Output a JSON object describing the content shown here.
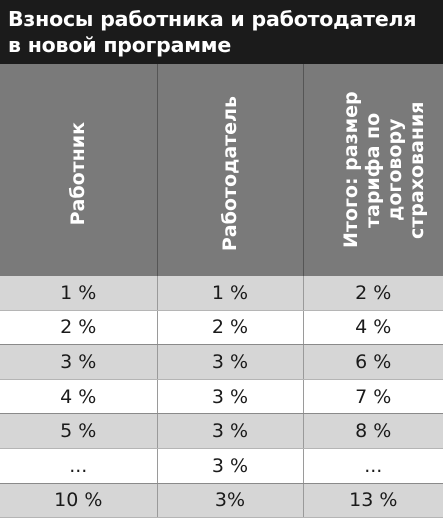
{
  "title": {
    "line1": "Взносы работника и работодателя",
    "line2": "в новой программе"
  },
  "columns": {
    "employee": "Работник",
    "employer": "Работодатель",
    "total": "Итого: размер тарифа по договору страхования"
  },
  "rows": [
    [
      "1 %",
      "1 %",
      "2 %"
    ],
    [
      "2 %",
      "2 %",
      "4 %"
    ],
    [
      "3 %",
      "3 %",
      "6 %"
    ],
    [
      "4 %",
      "3 %",
      "7 %"
    ],
    [
      "5 %",
      "3 %",
      "8 %"
    ],
    [
      "...",
      "3 %",
      "..."
    ],
    [
      "10 %",
      "3%",
      "13 %"
    ]
  ],
  "colors": {
    "title_bg": "#1b1b1b",
    "header_bg": "#7a7a7a",
    "row_gray": "#d6d6d6",
    "row_white": "#ffffff"
  }
}
